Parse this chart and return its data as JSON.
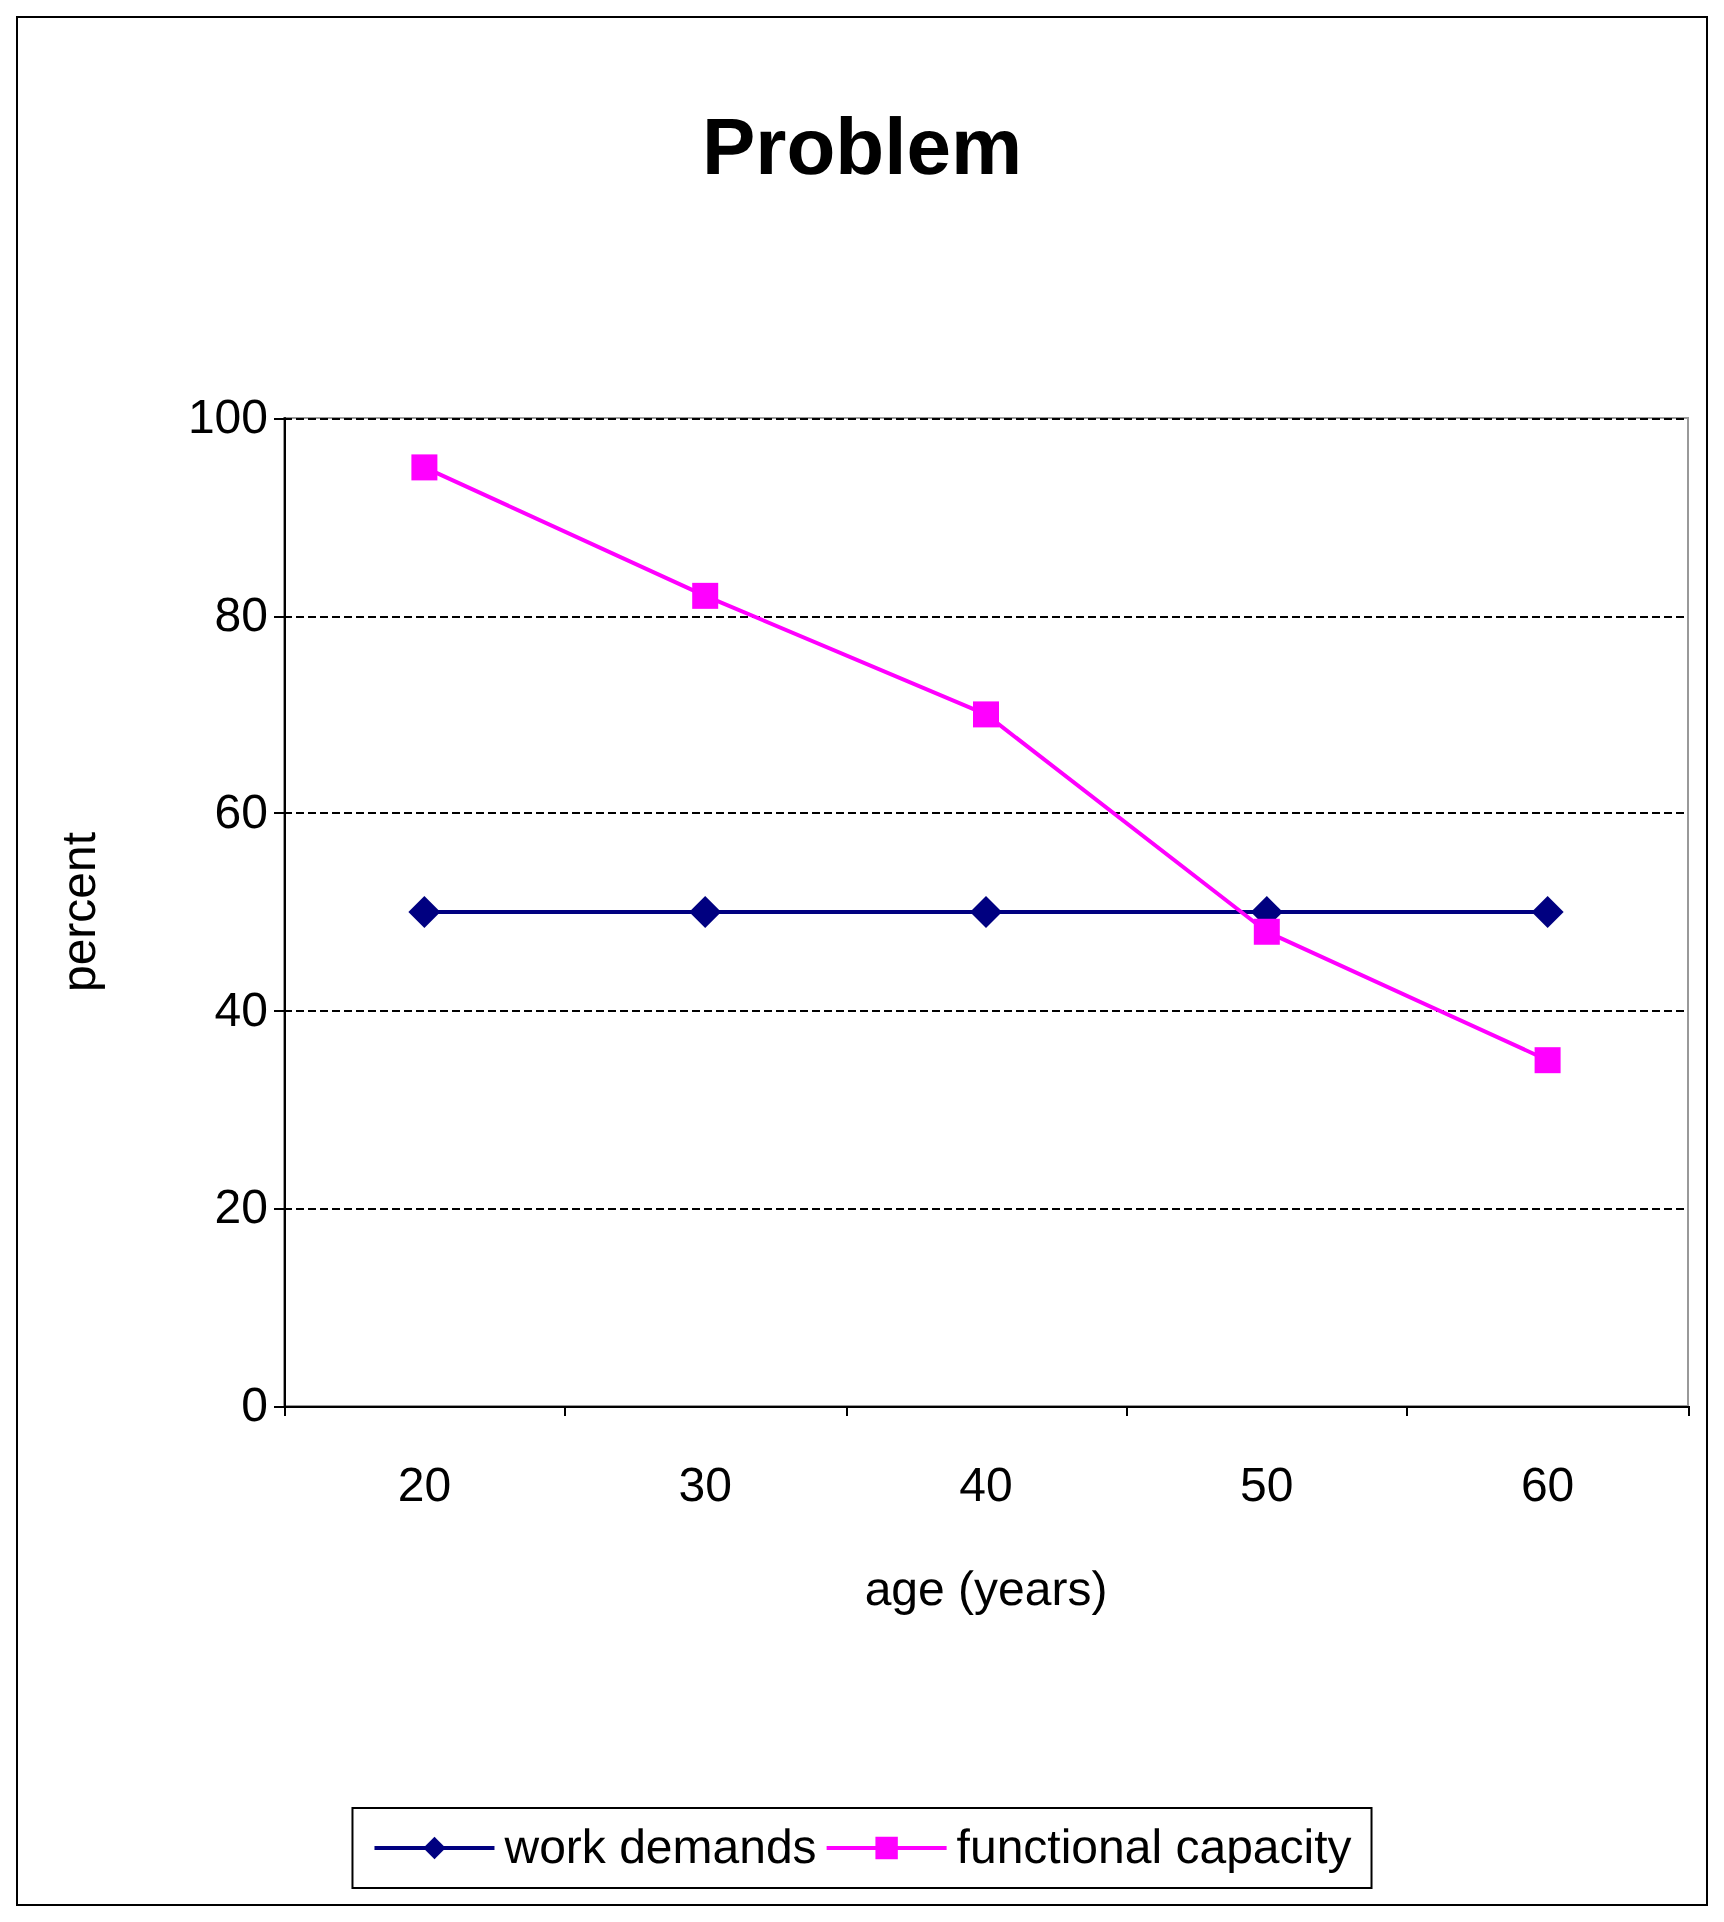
{
  "chart_data": {
    "type": "line",
    "title": "Problem",
    "xlabel": "age (years)",
    "ylabel": "percent",
    "categories": [
      "20",
      "30",
      "40",
      "50",
      "60"
    ],
    "series": [
      {
        "name": "work demands",
        "color": "#000080",
        "marker": "diamond",
        "values": [
          50,
          50,
          50,
          50,
          50
        ]
      },
      {
        "name": "functional capacity",
        "color": "#ff00ff",
        "marker": "square",
        "values": [
          95,
          82,
          70,
          48,
          35
        ]
      }
    ],
    "ylim": [
      0,
      100
    ],
    "yticks": [
      0,
      20,
      40,
      60,
      80,
      100
    ],
    "grid": "y",
    "legend": "bottom",
    "line_style": "solid"
  }
}
